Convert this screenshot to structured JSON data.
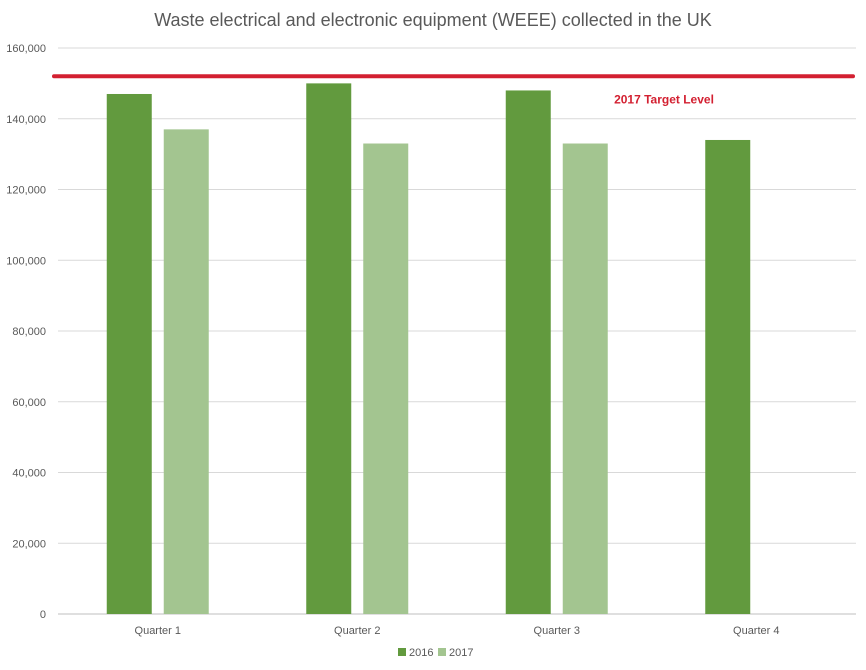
{
  "chart_data": {
    "type": "bar",
    "title": "Waste electrical and electronic equipment (WEEE) collected in the UK",
    "xlabel": "",
    "ylabel": "",
    "categories": [
      "Quarter 1",
      "Quarter 2",
      "Quarter 3",
      "Quarter 4"
    ],
    "series": [
      {
        "name": "2016",
        "color": "#629a3e",
        "values": [
          147000,
          150000,
          148000,
          134000
        ]
      },
      {
        "name": "2017",
        "color": "#a3c590",
        "values": [
          137000,
          133000,
          133000,
          null
        ]
      }
    ],
    "ylim": [
      0,
      160000
    ],
    "yticks": [
      "0",
      "20,000",
      "40,000",
      "60,000",
      "80,000",
      "100,000",
      "120,000",
      "140,000",
      "160,000"
    ],
    "ytick_values": [
      0,
      20000,
      40000,
      60000,
      80000,
      100000,
      120000,
      140000,
      160000
    ],
    "grid": true,
    "legend_position": "bottom",
    "target_line": {
      "value": 152000,
      "label": "2017 Target Level",
      "color": "#d32031"
    }
  }
}
